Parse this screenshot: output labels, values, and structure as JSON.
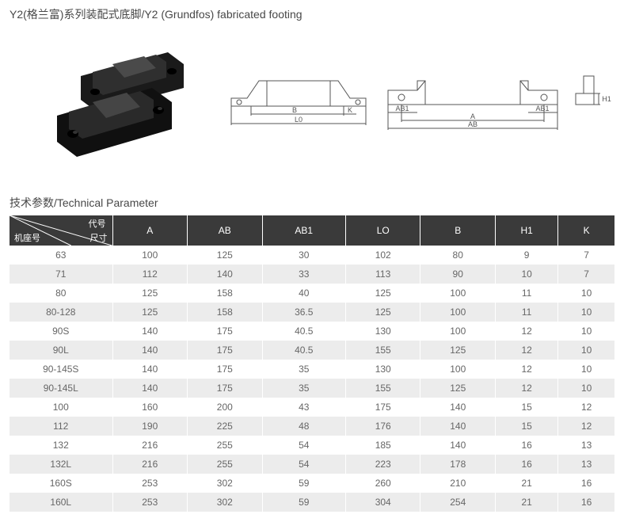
{
  "title": "Y2(格兰富)系列装配式底脚/Y2 (Grundfos) fabricated footing",
  "section_title": "技术参数/Technical Parameter",
  "corner": {
    "top": "代号",
    "mid": "尺寸",
    "bot": "机座号"
  },
  "columns": [
    "A",
    "AB",
    "AB1",
    "LO",
    "B",
    "H1",
    "K"
  ],
  "rows": [
    {
      "name": "63",
      "v": [
        "100",
        "125",
        "30",
        "102",
        "80",
        "9",
        "7"
      ]
    },
    {
      "name": "71",
      "v": [
        "112",
        "140",
        "33",
        "113",
        "90",
        "10",
        "7"
      ]
    },
    {
      "name": "80",
      "v": [
        "125",
        "158",
        "40",
        "125",
        "100",
        "11",
        "10"
      ]
    },
    {
      "name": "80-128",
      "v": [
        "125",
        "158",
        "36.5",
        "125",
        "100",
        "11",
        "10"
      ]
    },
    {
      "name": "90S",
      "v": [
        "140",
        "175",
        "40.5",
        "130",
        "100",
        "12",
        "10"
      ]
    },
    {
      "name": "90L",
      "v": [
        "140",
        "175",
        "40.5",
        "155",
        "125",
        "12",
        "10"
      ]
    },
    {
      "name": "90-145S",
      "v": [
        "140",
        "175",
        "35",
        "130",
        "100",
        "12",
        "10"
      ]
    },
    {
      "name": "90-145L",
      "v": [
        "140",
        "175",
        "35",
        "155",
        "125",
        "12",
        "10"
      ]
    },
    {
      "name": "100",
      "v": [
        "160",
        "200",
        "43",
        "175",
        "140",
        "15",
        "12"
      ]
    },
    {
      "name": "112",
      "v": [
        "190",
        "225",
        "48",
        "176",
        "140",
        "15",
        "12"
      ]
    },
    {
      "name": "132",
      "v": [
        "216",
        "255",
        "54",
        "185",
        "140",
        "16",
        "13"
      ]
    },
    {
      "name": "132L",
      "v": [
        "216",
        "255",
        "54",
        "223",
        "178",
        "16",
        "13"
      ]
    },
    {
      "name": "160S",
      "v": [
        "253",
        "302",
        "59",
        "260",
        "210",
        "21",
        "16"
      ]
    },
    {
      "name": "160L",
      "v": [
        "253",
        "302",
        "59",
        "304",
        "254",
        "21",
        "16"
      ]
    }
  ],
  "diagram_labels": {
    "B": "B",
    "K": "K",
    "L0": "L0",
    "AB1": "AB1",
    "A": "A",
    "AB": "AB",
    "H1": "H1"
  },
  "colors": {
    "header_bg": "#3a3a3a",
    "row_alt": "#ececec",
    "text": "#666666",
    "title": "#484848"
  }
}
